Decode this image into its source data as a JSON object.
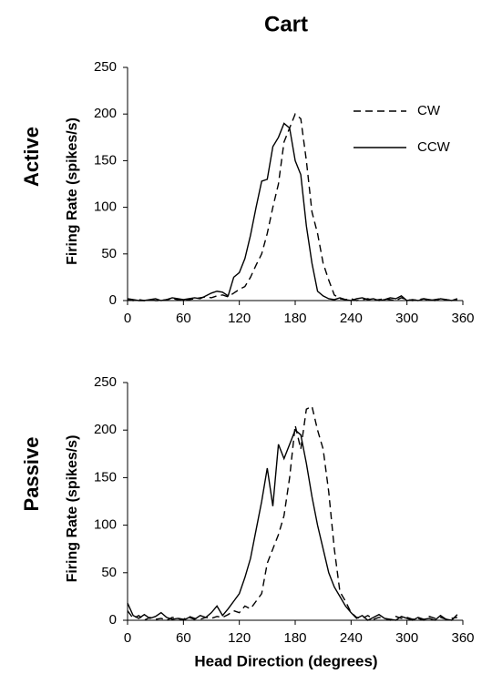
{
  "title": "Cart",
  "chart_data": [
    {
      "type": "line",
      "row_label": "Active",
      "ylabel": "Firing Rate (spikes/s)",
      "x": [
        0,
        6,
        12,
        18,
        24,
        30,
        36,
        42,
        48,
        54,
        60,
        66,
        72,
        78,
        84,
        90,
        96,
        102,
        108,
        114,
        120,
        126,
        132,
        138,
        144,
        150,
        156,
        162,
        168,
        174,
        180,
        186,
        192,
        198,
        204,
        210,
        216,
        222,
        228,
        234,
        240,
        246,
        252,
        258,
        264,
        270,
        276,
        282,
        288,
        294,
        300,
        306,
        312,
        318,
        324,
        330,
        336,
        342,
        348,
        354
      ],
      "xlim": [
        0,
        360
      ],
      "xticks": [
        0,
        60,
        120,
        180,
        240,
        300,
        360
      ],
      "ylim": [
        0,
        250
      ],
      "yticks": [
        0,
        50,
        100,
        150,
        200,
        250
      ],
      "legend": "upper right",
      "series": [
        {
          "name": "CW",
          "color": "#000000",
          "linestyle": "dashed",
          "values": [
            1,
            0,
            1,
            0,
            1,
            0,
            0,
            1,
            2,
            1,
            0,
            1,
            2,
            3,
            4,
            3,
            5,
            6,
            4,
            8,
            12,
            15,
            25,
            38,
            50,
            72,
            100,
            125,
            170,
            185,
            200,
            195,
            150,
            95,
            72,
            40,
            22,
            6,
            2,
            1,
            2,
            0,
            1,
            2,
            0,
            1,
            2,
            1,
            0,
            3,
            1,
            0,
            1,
            2,
            0,
            1,
            2,
            1,
            0,
            1
          ]
        },
        {
          "name": "CCW",
          "color": "#000000",
          "linestyle": "solid",
          "values": [
            2,
            1,
            0,
            0,
            1,
            2,
            0,
            1,
            3,
            2,
            1,
            2,
            3,
            2,
            5,
            8,
            10,
            9,
            5,
            25,
            30,
            45,
            70,
            100,
            128,
            130,
            165,
            175,
            190,
            185,
            150,
            135,
            80,
            40,
            10,
            5,
            2,
            1,
            3,
            1,
            0,
            2,
            3,
            1,
            2,
            0,
            1,
            3,
            2,
            5,
            0,
            1,
            0,
            2,
            1,
            0,
            2,
            1,
            0,
            2
          ]
        }
      ]
    },
    {
      "type": "line",
      "row_label": "Passive",
      "ylabel": "Firing Rate (spikes/s)",
      "xlabel": "Head Direction (degrees)",
      "x": [
        0,
        6,
        12,
        18,
        24,
        30,
        36,
        42,
        48,
        54,
        60,
        66,
        72,
        78,
        84,
        90,
        96,
        102,
        108,
        114,
        120,
        126,
        132,
        138,
        144,
        150,
        156,
        162,
        168,
        174,
        180,
        186,
        192,
        198,
        204,
        210,
        216,
        222,
        228,
        234,
        240,
        246,
        252,
        258,
        264,
        270,
        276,
        282,
        288,
        294,
        300,
        306,
        312,
        318,
        324,
        330,
        336,
        342,
        348,
        354
      ],
      "xlim": [
        0,
        360
      ],
      "xticks": [
        0,
        60,
        120,
        180,
        240,
        300,
        360
      ],
      "ylim": [
        0,
        250
      ],
      "yticks": [
        0,
        50,
        100,
        150,
        200,
        250
      ],
      "series": [
        {
          "color": "#000000",
          "linestyle": "dashed",
          "values": [
            10,
            2,
            5,
            0,
            3,
            1,
            2,
            0,
            3,
            2,
            1,
            4,
            2,
            1,
            3,
            2,
            4,
            3,
            6,
            10,
            8,
            15,
            12,
            20,
            28,
            60,
            75,
            90,
            110,
            150,
            205,
            180,
            222,
            225,
            200,
            180,
            135,
            75,
            30,
            20,
            8,
            3,
            2,
            5,
            1,
            3,
            2,
            0,
            4,
            2,
            3,
            1,
            2,
            0,
            4,
            2,
            3,
            1,
            2,
            3
          ]
        },
        {
          "color": "#000000",
          "linestyle": "solid",
          "values": [
            18,
            5,
            2,
            6,
            2,
            4,
            8,
            3,
            1,
            2,
            0,
            3,
            1,
            5,
            3,
            8,
            15,
            5,
            12,
            20,
            28,
            45,
            65,
            95,
            125,
            160,
            120,
            185,
            170,
            185,
            200,
            195,
            165,
            130,
            100,
            75,
            50,
            35,
            25,
            15,
            8,
            2,
            5,
            0,
            3,
            6,
            2,
            1,
            0,
            4,
            2,
            0,
            3,
            1,
            2,
            0,
            5,
            1,
            0,
            6
          ]
        }
      ]
    }
  ]
}
